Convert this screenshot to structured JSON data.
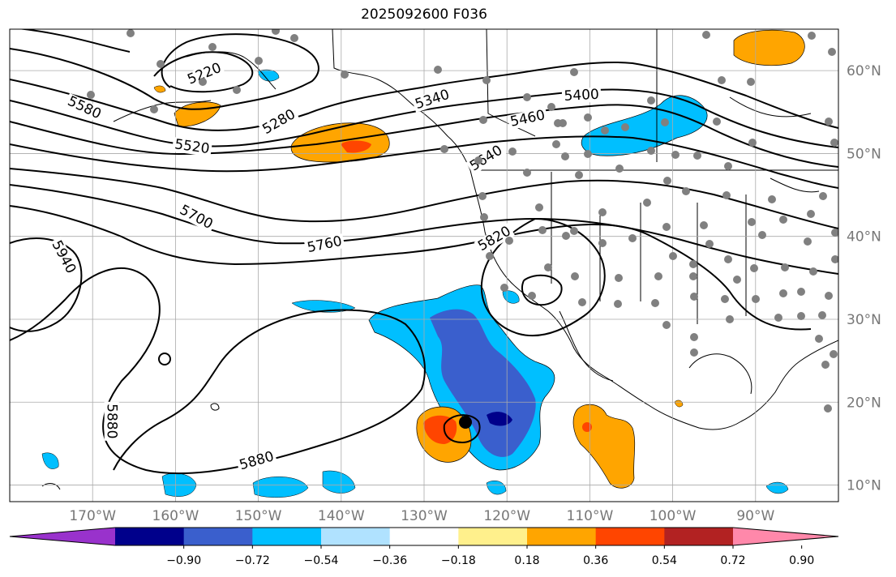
{
  "title": "2025092600 F036",
  "map": {
    "lon_range": [
      -180,
      -80
    ],
    "lat_range": [
      8,
      65
    ],
    "lon_ticks": [
      {
        "value": -170,
        "label": "170°W"
      },
      {
        "value": -160,
        "label": "160°W"
      },
      {
        "value": -150,
        "label": "150°W"
      },
      {
        "value": -140,
        "label": "140°W"
      },
      {
        "value": -130,
        "label": "130°W"
      },
      {
        "value": -120,
        "label": "120°W"
      },
      {
        "value": -110,
        "label": "110°W"
      },
      {
        "value": -100,
        "label": "100°W"
      },
      {
        "value": -90,
        "label": "90°W"
      }
    ],
    "lat_ticks": [
      {
        "value": 10,
        "label": "10°N"
      },
      {
        "value": 20,
        "label": "20°N"
      },
      {
        "value": 30,
        "label": "30°N"
      },
      {
        "value": 40,
        "label": "40°N"
      },
      {
        "value": 50,
        "label": "50°N"
      },
      {
        "value": 60,
        "label": "60°N"
      }
    ],
    "gridlines": true,
    "contour_labels": [
      {
        "text": "5220",
        "lon": -156.5,
        "lat": 59.6,
        "angle": -22
      },
      {
        "text": "5280",
        "lon": -147.5,
        "lat": 53.8,
        "angle": -30
      },
      {
        "text": "5340",
        "lon": -129.0,
        "lat": 56.5,
        "angle": -18
      },
      {
        "text": "5400",
        "lon": -111.0,
        "lat": 57.0,
        "angle": -3
      },
      {
        "text": "5460",
        "lon": -117.5,
        "lat": 54.2,
        "angle": -12
      },
      {
        "text": "5580",
        "lon": -171.0,
        "lat": 55.5,
        "angle": 25
      },
      {
        "text": "5520",
        "lon": -158.0,
        "lat": 50.8,
        "angle": 8
      },
      {
        "text": "5640",
        "lon": -122.5,
        "lat": 49.4,
        "angle": -32
      },
      {
        "text": "5700",
        "lon": -157.5,
        "lat": 42.3,
        "angle": 28
      },
      {
        "text": "5760",
        "lon": -142.0,
        "lat": 39.0,
        "angle": -12
      },
      {
        "text": "5820",
        "lon": -121.5,
        "lat": 39.7,
        "angle": -30
      },
      {
        "text": "5940",
        "lon": -173.5,
        "lat": 37.5,
        "angle": 62
      },
      {
        "text": "5880",
        "lon": -167.7,
        "lat": 17.7,
        "angle": 90
      },
      {
        "text": "5880",
        "lon": -150.2,
        "lat": 12.9,
        "angle": -16
      }
    ]
  },
  "colorbar": {
    "ticks": [
      "−0.90",
      "−0.72",
      "−0.54",
      "−0.36",
      "−0.18",
      "0.18",
      "0.36",
      "0.54",
      "0.72",
      "0.90"
    ],
    "colors": [
      "#9932cc",
      "#00008b",
      "#3a5fcd",
      "#00bfff",
      "#b0e2ff",
      "#ffffff",
      "#fff08c",
      "#ffa500",
      "#ff4500",
      "#b22222",
      "#ff88aa"
    ]
  }
}
